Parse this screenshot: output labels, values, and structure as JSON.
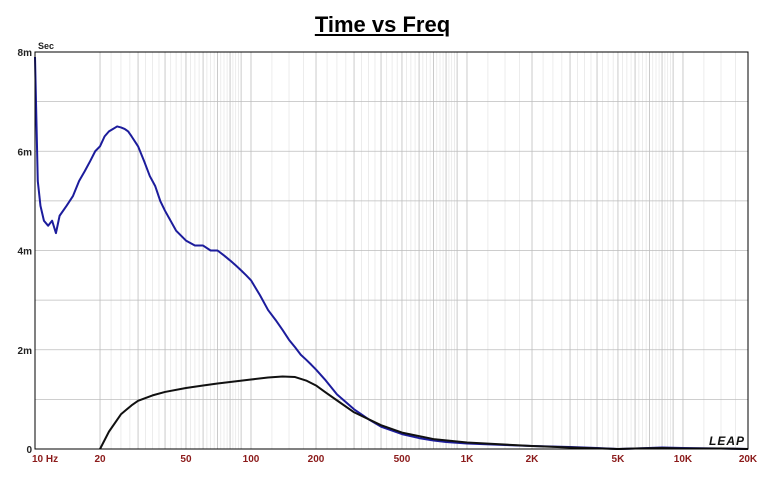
{
  "chart_data": {
    "type": "line",
    "title": "Time vs Freq",
    "ylabel": "Sec",
    "xlabel": "",
    "x_scale": "log",
    "xlim": [
      10,
      20000
    ],
    "ylim": [
      0,
      0.008
    ],
    "grid": true,
    "x_tick_values": [
      10,
      20,
      50,
      100,
      200,
      500,
      1000,
      2000,
      5000,
      10000,
      20000
    ],
    "x_tick_labels": [
      "10  Hz",
      "20",
      "50",
      "100",
      "200",
      "500",
      "1K",
      "2K",
      "5K",
      "10K",
      "20K"
    ],
    "y_tick_values": [
      0,
      0.002,
      0.004,
      0.006,
      0.008
    ],
    "y_tick_labels": [
      "0",
      "2m",
      "4m",
      "6m",
      "8m"
    ],
    "series": [
      {
        "color": "#1c1c9c",
        "x": [
          10,
          10.3,
          10.6,
          11,
          11.5,
          12,
          12.5,
          13,
          14,
          15,
          16,
          17,
          18,
          19,
          20,
          21,
          22,
          23,
          24,
          25,
          26,
          27,
          28,
          30,
          32,
          34,
          36,
          38,
          40,
          45,
          50,
          55,
          60,
          65,
          70,
          75,
          80,
          85,
          90,
          95,
          100,
          110,
          120,
          130,
          140,
          150,
          160,
          170,
          180,
          190,
          200,
          220,
          250,
          300,
          350,
          400,
          500,
          600,
          700,
          800,
          1000,
          1500,
          2000,
          3000,
          4000,
          5000,
          6000,
          8000,
          10000,
          15000,
          20000
        ],
        "y": [
          0.0079,
          0.0054,
          0.0049,
          0.0046,
          0.0045,
          0.0046,
          0.00435,
          0.0047,
          0.0049,
          0.0051,
          0.0054,
          0.0056,
          0.0058,
          0.006,
          0.0061,
          0.0063,
          0.0064,
          0.00645,
          0.0065,
          0.00648,
          0.00645,
          0.0064,
          0.0063,
          0.0061,
          0.0058,
          0.0055,
          0.0053,
          0.005,
          0.0048,
          0.0044,
          0.0042,
          0.0041,
          0.0041,
          0.004,
          0.004,
          0.0039,
          0.0038,
          0.0037,
          0.0036,
          0.0035,
          0.0034,
          0.0031,
          0.0028,
          0.0026,
          0.0024,
          0.0022,
          0.00205,
          0.0019,
          0.0018,
          0.0017,
          0.0016,
          0.0014,
          0.0011,
          0.0008,
          0.0006,
          0.00045,
          0.0003,
          0.00022,
          0.00017,
          0.00014,
          0.00011,
          8e-05,
          6e-05,
          4e-05,
          2e-05,
          0.0,
          1e-05,
          3e-05,
          2e-05,
          1e-05,
          0.0
        ]
      },
      {
        "color": "#111111",
        "x": [
          20,
          22,
          25,
          28,
          30,
          35,
          40,
          50,
          60,
          70,
          80,
          100,
          120,
          140,
          160,
          180,
          200,
          220,
          250,
          300,
          400,
          500,
          700,
          1000,
          2000,
          3000,
          5000,
          6000,
          8000,
          10000,
          15000,
          20000
        ],
        "y": [
          0.0,
          0.00035,
          0.0007,
          0.00088,
          0.00097,
          0.00108,
          0.00115,
          0.00123,
          0.00128,
          0.00132,
          0.00135,
          0.0014,
          0.00144,
          0.00146,
          0.00145,
          0.00138,
          0.00128,
          0.00115,
          0.00098,
          0.00074,
          0.00048,
          0.00033,
          0.0002,
          0.00013,
          6e-05,
          3e-05,
          0.0,
          1e-05,
          2e-05,
          1e-05,
          1e-05,
          0.0
        ]
      }
    ],
    "logo": "LEAP"
  }
}
